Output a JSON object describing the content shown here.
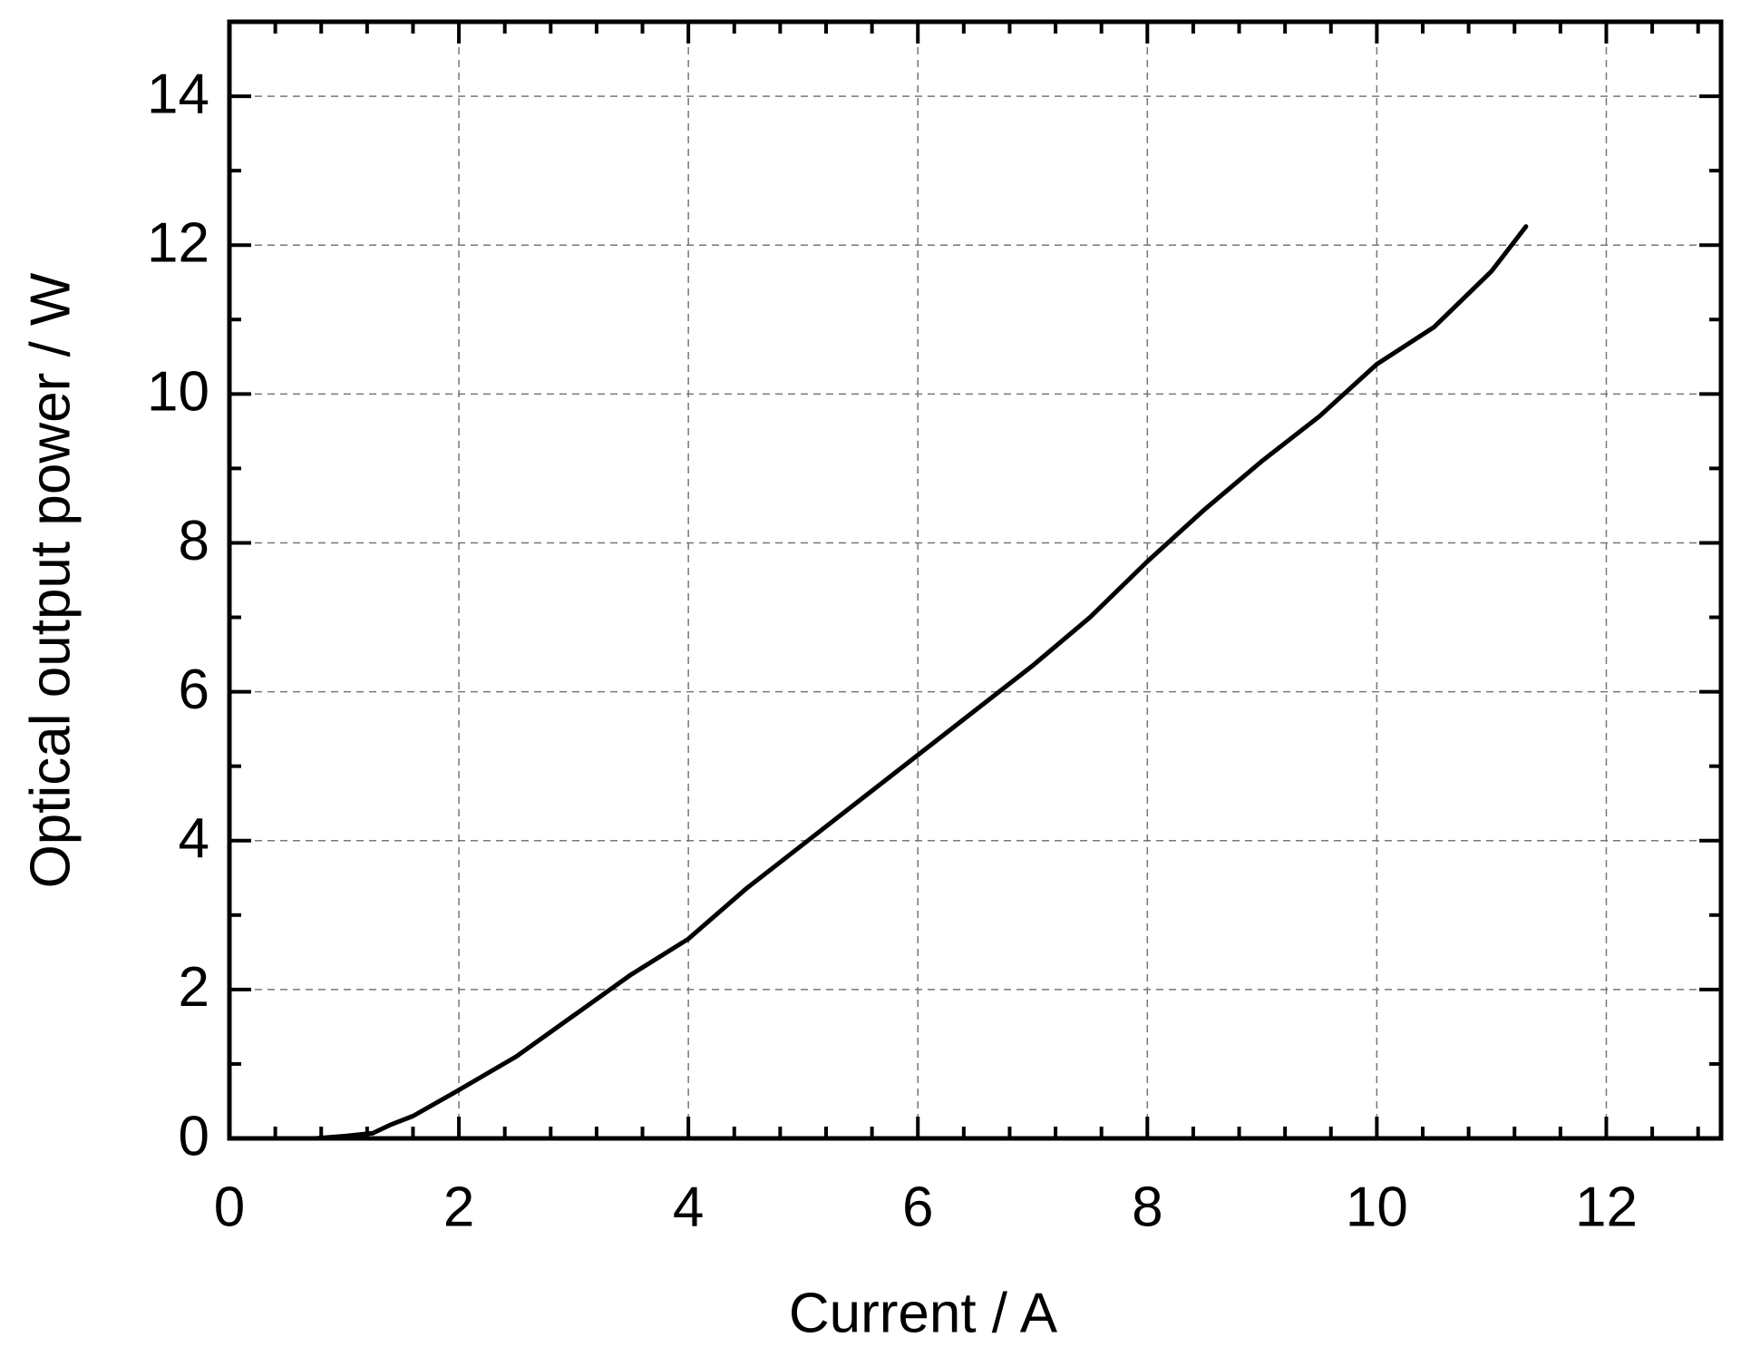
{
  "chart_data": {
    "type": "line",
    "x_label": "Current / A",
    "y_label": "Optical output power / W",
    "xlim": [
      0,
      13
    ],
    "xticks": [
      0,
      2,
      4,
      6,
      8,
      10,
      12
    ],
    "ylim": [
      0,
      15
    ],
    "yticks": [
      0,
      2,
      4,
      6,
      8,
      10,
      12,
      14
    ],
    "grid": true,
    "series": [
      {
        "color": "#000000",
        "x": [
          0.75,
          1.0,
          1.25,
          1.4,
          1.6,
          2.0,
          2.5,
          3.0,
          3.5,
          4.0,
          4.5,
          5.0,
          5.5,
          6.0,
          6.5,
          7.0,
          7.5,
          8.0,
          8.5,
          9.0,
          9.5,
          10.0,
          10.5,
          11.0,
          11.3
        ],
        "values": [
          0,
          0.03,
          0.07,
          0.18,
          0.3,
          0.65,
          1.1,
          1.65,
          2.2,
          2.68,
          3.35,
          3.95,
          4.55,
          5.15,
          5.75,
          6.35,
          7.0,
          7.75,
          8.45,
          9.1,
          9.7,
          10.4,
          10.9,
          11.65,
          12.25
        ]
      }
    ]
  }
}
